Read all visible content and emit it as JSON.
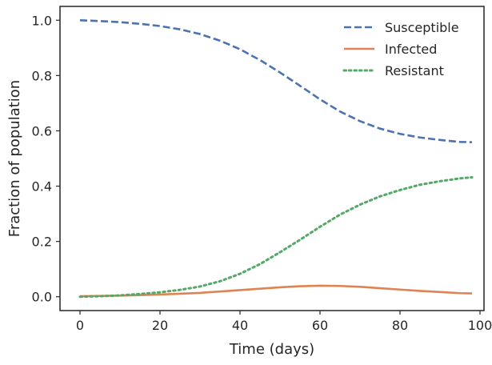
{
  "chart_data": {
    "type": "line",
    "title": "",
    "xlabel": "Time (days)",
    "ylabel": "Fraction of population",
    "xlim": [
      -5,
      101
    ],
    "ylim": [
      -0.05,
      1.05
    ],
    "xticks": [
      0,
      20,
      40,
      60,
      80,
      100
    ],
    "xtick_labels": [
      "0",
      "20",
      "40",
      "60",
      "80",
      "100"
    ],
    "yticks": [
      0.0,
      0.2,
      0.4,
      0.6,
      0.8,
      1.0
    ],
    "ytick_labels": [
      "0.0",
      "0.2",
      "0.4",
      "0.6",
      "0.8",
      "1.0"
    ],
    "grid": false,
    "legend_position": "top-right",
    "x": [
      0,
      5,
      10,
      15,
      20,
      25,
      30,
      35,
      40,
      45,
      50,
      55,
      60,
      65,
      70,
      75,
      80,
      85,
      90,
      95,
      98
    ],
    "series": [
      {
        "name": "Susceptible",
        "color": "#4c72b0",
        "style": "dashed",
        "values": [
          1.0,
          0.997,
          0.993,
          0.987,
          0.979,
          0.967,
          0.95,
          0.926,
          0.895,
          0.856,
          0.811,
          0.763,
          0.714,
          0.67,
          0.635,
          0.608,
          0.589,
          0.576,
          0.567,
          0.56,
          0.559
        ]
      },
      {
        "name": "Infected",
        "color": "#dd8452",
        "style": "solid",
        "values": [
          0.002,
          0.003,
          0.004,
          0.006,
          0.008,
          0.011,
          0.014,
          0.019,
          0.024,
          0.029,
          0.034,
          0.038,
          0.04,
          0.039,
          0.036,
          0.031,
          0.026,
          0.021,
          0.017,
          0.013,
          0.012
        ]
      },
      {
        "name": "Resistant",
        "color": "#55a868",
        "style": "dotted",
        "values": [
          0.0,
          0.002,
          0.005,
          0.01,
          0.016,
          0.025,
          0.037,
          0.056,
          0.083,
          0.118,
          0.161,
          0.206,
          0.253,
          0.297,
          0.333,
          0.363,
          0.386,
          0.405,
          0.418,
          0.428,
          0.432
        ]
      }
    ]
  }
}
